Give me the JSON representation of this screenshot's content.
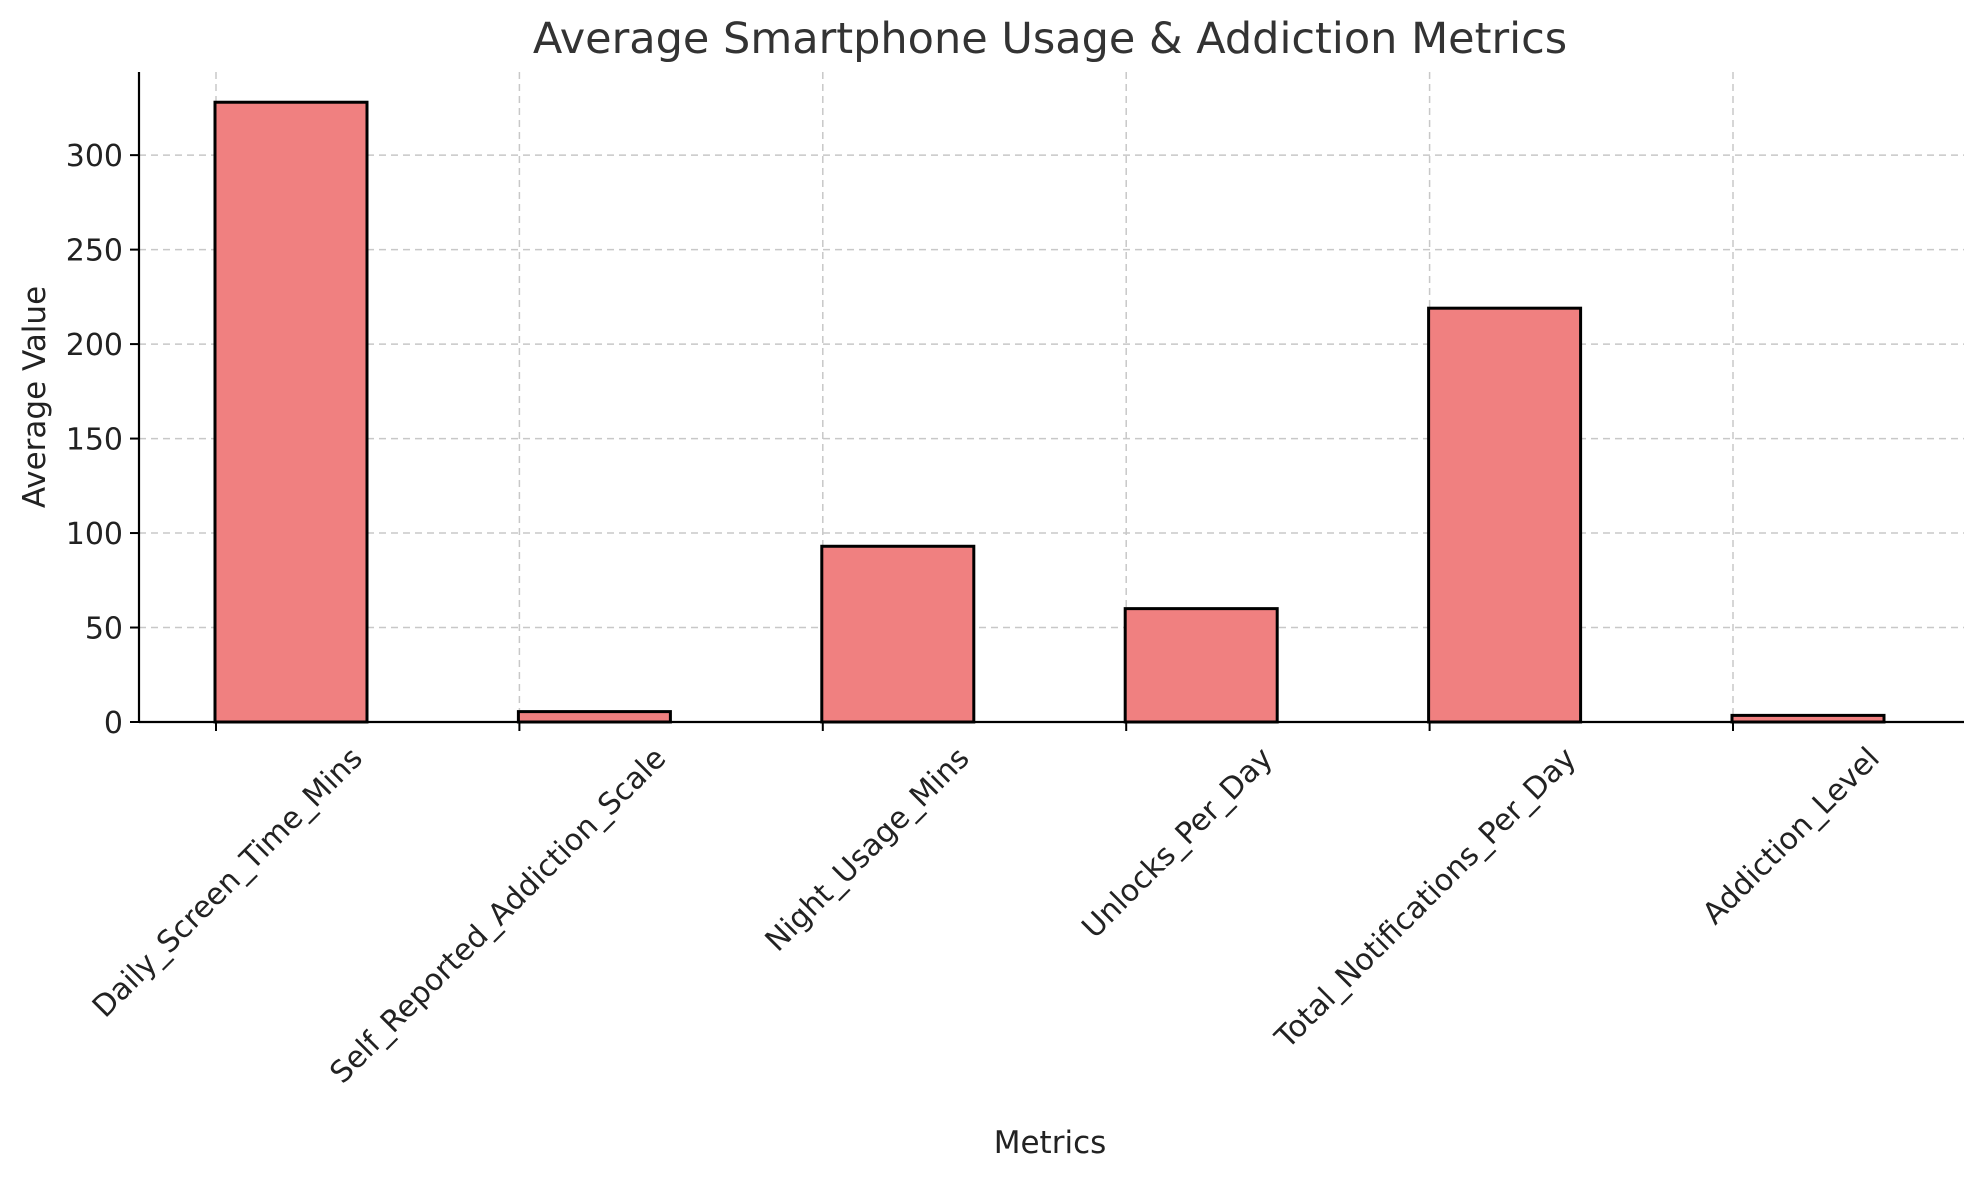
{
  "colors": {
    "bar_fill": "#f08080",
    "bar_edge": "#000000",
    "grid": "#c8c8c8",
    "title": "#333333"
  },
  "chart_data": {
    "type": "bar",
    "title": "Average Smartphone Usage & Addiction Metrics",
    "xlabel": "Metrics",
    "ylabel": "Average Value",
    "categories": [
      "Daily_Screen_Time_Mins",
      "Self_Reported_Addiction_Scale",
      "Night_Usage_Mins",
      "Unlocks_Per_Day",
      "Total_Notifications_Per_Day",
      "Addiction_Level"
    ],
    "values": [
      328,
      5.5,
      93,
      60,
      219,
      3.5
    ],
    "ylim": [
      0,
      344
    ],
    "yticks": [
      0,
      50,
      100,
      150,
      200,
      250,
      300
    ],
    "ytick_labels": [
      "0",
      "50",
      "100",
      "150",
      "200",
      "250",
      "300"
    ],
    "grid": true,
    "legend": "none"
  }
}
